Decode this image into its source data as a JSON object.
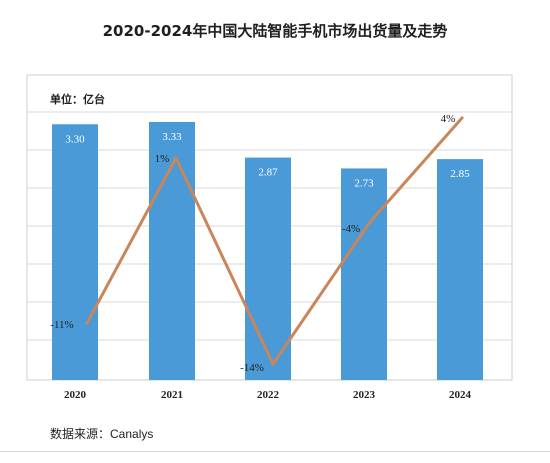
{
  "title": "2020-2024年中国大陆智能手机市场出货量及走势",
  "unit_label": "单位：亿台",
  "source_prefix": "数据来源：",
  "source_name": "Canalys",
  "colors": {
    "bar": "#4a9ad8",
    "line": "#c8865a",
    "grid": "#d9d9d9",
    "frame": "#cfcfcf"
  },
  "chart_data": {
    "type": "bar",
    "categories": [
      "2020",
      "2021",
      "2022",
      "2023",
      "2024"
    ],
    "series": [
      {
        "values": [
          3.3,
          3.33,
          2.87,
          2.73,
          2.85
        ],
        "labels": [
          "3.30",
          "3.33",
          "2.87",
          "2.73",
          "2.85"
        ],
        "kind": "bar",
        "unit": "亿台"
      },
      {
        "values": [
          -11,
          1,
          -14,
          -4,
          4
        ],
        "labels": [
          "-11%",
          "1%",
          "-14%",
          "-4%",
          "4%"
        ],
        "kind": "line",
        "unit": "%"
      }
    ],
    "ylim_bar": [
      0,
      3.5
    ],
    "ylim_line": [
      -16,
      5
    ],
    "grid": true,
    "legend": "none"
  }
}
